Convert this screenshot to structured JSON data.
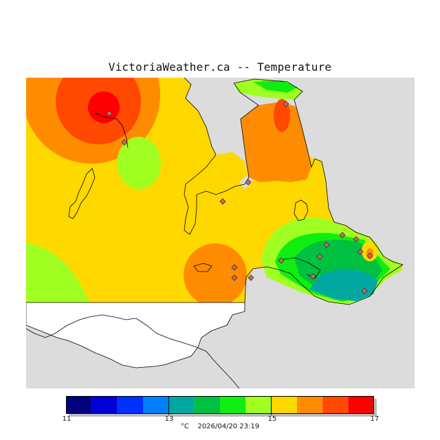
{
  "title": "VictoriaWeather.ca -- Temperature",
  "legend": {
    "bins": [
      {
        "from": 11.0,
        "to": 11.5,
        "color": "#000080"
      },
      {
        "from": 11.5,
        "to": 12.0,
        "color": "#0000d8"
      },
      {
        "from": 12.0,
        "to": 12.5,
        "color": "#0030ff"
      },
      {
        "from": 12.5,
        "to": 13.0,
        "color": "#0080ff"
      },
      {
        "from": 13.0,
        "to": 13.5,
        "color": "#00a8a0"
      },
      {
        "from": 13.5,
        "to": 14.0,
        "color": "#00c040"
      },
      {
        "from": 14.0,
        "to": 14.5,
        "color": "#10ee10"
      },
      {
        "from": 14.5,
        "to": 15.0,
        "color": "#a0ff20"
      },
      {
        "from": 15.0,
        "to": 15.5,
        "color": "#ffd800"
      },
      {
        "from": 15.5,
        "to": 16.0,
        "color": "#ff8c00"
      },
      {
        "from": 16.0,
        "to": 16.5,
        "color": "#ff4800"
      },
      {
        "from": 16.5,
        "to": 17.0,
        "color": "#ff0000"
      }
    ],
    "tick_labels": [
      "11",
      "13",
      "15",
      "17"
    ],
    "unit": "°C",
    "timestamp": "2026/04/20 23:19"
  },
  "colors": {
    "background_land": "#ffd800",
    "water_region": "#dcdcdc",
    "no_data_land": "#ffffff",
    "coastline": "#000000",
    "station_marker": "#cc6666"
  }
}
